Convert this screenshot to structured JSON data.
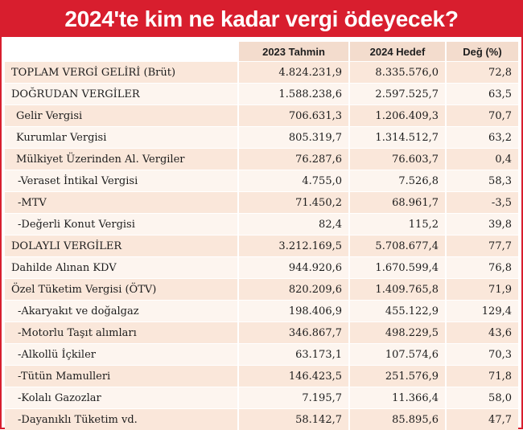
{
  "title": "2024'te kim ne kadar vergi ödeyecek?",
  "colors": {
    "accent": "#d81e2e",
    "row_shade": "#fae7da",
    "row_light": "#fdf5ef"
  },
  "table": {
    "headers": [
      "",
      "2023 Tahmin",
      "2024 Hedef",
      "Değ (%)"
    ],
    "rows": [
      {
        "label": "TOPLAM VERGİ GELİRİ (Brüt)",
        "v2023": "4.824.231,9",
        "v2024": "8.335.576,0",
        "change": "72,8"
      },
      {
        "label": "DOĞRUDAN VERGİLER",
        "v2023": "1.588.238,6",
        "v2024": "2.597.525,7",
        "change": "63,5"
      },
      {
        "label": "Gelir Vergisi",
        "v2023": "706.631,3",
        "v2024": "1.206.409,3",
        "change": "70,7"
      },
      {
        "label": "Kurumlar Vergisi",
        "v2023": "805.319,7",
        "v2024": "1.314.512,7",
        "change": "63,2"
      },
      {
        "label": "Mülkiyet Üzerinden Al. Vergiler",
        "v2023": "76.287,6",
        "v2024": "76.603,7",
        "change": "0,4"
      },
      {
        "label": "-Veraset İntikal Vergisi",
        "v2023": "4.755,0",
        "v2024": "7.526,8",
        "change": "58,3"
      },
      {
        "label": "-MTV",
        "v2023": "71.450,2",
        "v2024": "68.961,7",
        "change": "-3,5"
      },
      {
        "label": "-Değerli Konut Vergisi",
        "v2023": "82,4",
        "v2024": "115,2",
        "change": "39,8"
      },
      {
        "label": "DOLAYLI VERGİLER",
        "v2023": "3.212.169,5",
        "v2024": "5.708.677,4",
        "change": "77,7"
      },
      {
        "label": "Dahilde Alınan KDV",
        "v2023": "944.920,6",
        "v2024": "1.670.599,4",
        "change": "76,8"
      },
      {
        "label": "Özel Tüketim Vergisi (ÖTV)",
        "v2023": "820.209,6",
        "v2024": "1.409.765,8",
        "change": "71,9"
      },
      {
        "label": "-Akaryakıt ve doğalgaz",
        "v2023": "198.406,9",
        "v2024": "455.122,9",
        "change": "129,4"
      },
      {
        "label": "-Motorlu Taşıt alımları",
        "v2023": "346.867,7",
        "v2024": "498.229,5",
        "change": "43,6"
      },
      {
        "label": "-Alkollü İçkiler",
        "v2023": "63.173,1",
        "v2024": "107.574,6",
        "change": "70,3"
      },
      {
        "label": "-Tütün Mamulleri",
        "v2023": "146.423,5",
        "v2024": "251.576,9",
        "change": "71,8"
      },
      {
        "label": "-Kolalı Gazozlar",
        "v2023": "7.195,7",
        "v2024": "11.366,4",
        "change": "58,0"
      },
      {
        "label": "-Dayanıklı Tüketim vd.",
        "v2023": "58.142,7",
        "v2024": "85.895,6",
        "change": "47,7"
      }
    ]
  }
}
